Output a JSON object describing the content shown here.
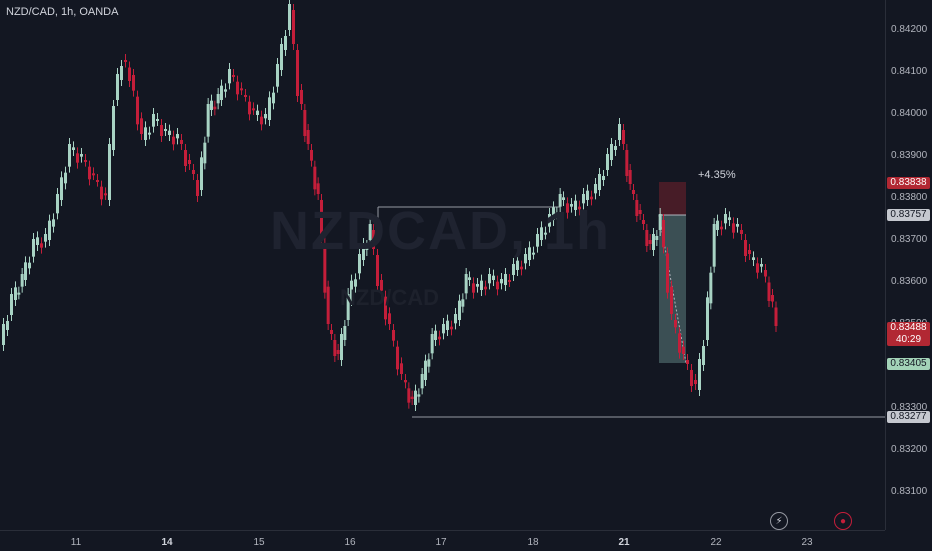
{
  "symbol": "NZD/CAD, 1h, OANDA",
  "watermark": "NZDCAD, 1h",
  "watermark_sub": "NZD/CAD",
  "price_axis_labels": [
    "0.84200",
    "0.84100",
    "0.84000",
    "0.83900",
    "0.83800",
    "0.83700",
    "0.83600",
    "0.83500",
    "0.83300",
    "0.83200",
    "0.83100"
  ],
  "time_axis_labels": [
    {
      "text": "11",
      "bold": false
    },
    {
      "text": "14",
      "bold": true
    },
    {
      "text": "15",
      "bold": false
    },
    {
      "text": "16",
      "bold": false
    },
    {
      "text": "17",
      "bold": false
    },
    {
      "text": "18",
      "bold": false
    },
    {
      "text": "21",
      "bold": true
    },
    {
      "text": "22",
      "bold": false
    },
    {
      "text": "23",
      "bold": false
    }
  ],
  "badges": {
    "stop": {
      "text": "0.83838",
      "color": "#b22833"
    },
    "entry": {
      "text": "0.83757",
      "color": "#c5c8cf"
    },
    "current": {
      "text": "0.83488",
      "countdown": "40:29",
      "color": "#b22833"
    },
    "target": {
      "text": "0.83405",
      "color": "#a3d3b8"
    },
    "low": {
      "text": "0.83277",
      "color": "#c5c8cf"
    }
  },
  "annotation": "+4.35%",
  "colors": {
    "up": "#a8d3c4",
    "down": "#c41e3a",
    "bg": "#131722"
  },
  "icons": {
    "alert": "lightning-icon",
    "record": "record-icon"
  }
}
